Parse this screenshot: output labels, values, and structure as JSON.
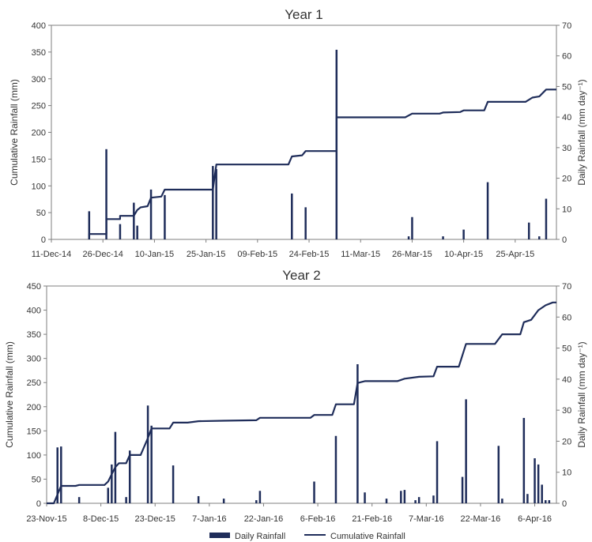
{
  "chart_data": [
    {
      "type": "bar+line",
      "title": "Year 1",
      "ylabel_left": "Cumulative Rainfall (mm)",
      "ylabel_right": "Daily Rainfall (mm day⁻¹)",
      "ylim_left": [
        0,
        400
      ],
      "yticks_left": [
        0,
        50,
        100,
        150,
        200,
        250,
        300,
        350,
        400
      ],
      "ylim_right": [
        0,
        70
      ],
      "yticks_right": [
        0,
        10,
        20,
        30,
        40,
        50,
        60,
        70
      ],
      "x_range": [
        "2014-12-11",
        "2015-05-07"
      ],
      "x_ticks": [
        "11-Dec-14",
        "26-Dec-14",
        "10-Jan-15",
        "25-Jan-15",
        "09-Feb-15",
        "24-Feb-15",
        "11-Mar-15",
        "26-Mar-15",
        "10-Apr-15",
        "25-Apr-15"
      ],
      "grid": false,
      "series": [
        {
          "name": "Daily Rainfall",
          "kind": "bar",
          "color": "#1f2d5a",
          "points": [
            [
              "2014-12-22",
              9.2
            ],
            [
              "2014-12-27",
              29.5
            ],
            [
              "2014-12-31",
              5.0
            ],
            [
              "2015-01-04",
              12.0
            ],
            [
              "2015-01-05",
              4.5
            ],
            [
              "2015-01-09",
              16.3
            ],
            [
              "2015-01-13",
              14.5
            ],
            [
              "2015-01-27",
              24.0
            ],
            [
              "2015-01-28",
              23.0
            ],
            [
              "2015-02-19",
              15.0
            ],
            [
              "2015-02-23",
              10.5
            ],
            [
              "2015-03-04",
              62.0
            ],
            [
              "2015-03-25",
              1.0
            ],
            [
              "2015-03-26",
              7.3
            ],
            [
              "2015-04-04",
              1.0
            ],
            [
              "2015-04-10",
              3.2
            ],
            [
              "2015-04-17",
              18.7
            ],
            [
              "2015-04-29",
              5.5
            ],
            [
              "2015-05-02",
              1.0
            ],
            [
              "2015-05-04",
              13.3
            ]
          ]
        },
        {
          "name": "Cumulative Rainfall",
          "kind": "line",
          "color": "#1f2d5a",
          "points": [
            [
              "2014-12-22",
              0
            ],
            [
              "2014-12-22",
              10
            ],
            [
              "2014-12-27",
              10
            ],
            [
              "2014-12-27",
              38
            ],
            [
              "2014-12-31",
              38
            ],
            [
              "2014-12-31",
              44
            ],
            [
              "2015-01-04",
              44
            ],
            [
              "2015-01-05",
              55
            ],
            [
              "2015-01-06",
              60
            ],
            [
              "2015-01-08",
              62
            ],
            [
              "2015-01-09",
              78
            ],
            [
              "2015-01-12",
              80
            ],
            [
              "2015-01-13",
              93
            ],
            [
              "2015-01-27",
              93
            ],
            [
              "2015-01-28",
              140
            ],
            [
              "2015-02-18",
              140
            ],
            [
              "2015-02-19",
              155
            ],
            [
              "2015-02-22",
              157
            ],
            [
              "2015-02-23",
              165
            ],
            [
              "2015-03-04",
              165
            ],
            [
              "2015-03-04",
              228
            ],
            [
              "2015-03-24",
              228
            ],
            [
              "2015-03-26",
              235
            ],
            [
              "2015-04-03",
              235
            ],
            [
              "2015-04-04",
              237
            ],
            [
              "2015-04-09",
              238
            ],
            [
              "2015-04-10",
              241
            ],
            [
              "2015-04-16",
              241
            ],
            [
              "2015-04-17",
              257
            ],
            [
              "2015-04-28",
              257
            ],
            [
              "2015-04-30",
              265
            ],
            [
              "2015-05-02",
              267
            ],
            [
              "2015-05-04",
              280
            ],
            [
              "2015-05-07",
              280
            ]
          ]
        }
      ]
    },
    {
      "type": "bar+line",
      "title": "Year 2",
      "ylabel_left": "Cumulative Rainfall (mm)",
      "ylabel_right": "Daily Rainfall (mm day⁻¹)",
      "ylim_left": [
        0,
        450
      ],
      "yticks_left": [
        0,
        50,
        100,
        150,
        200,
        250,
        300,
        350,
        400,
        450
      ],
      "ylim_right": [
        0,
        70
      ],
      "yticks_right": [
        0,
        10,
        20,
        30,
        40,
        50,
        60,
        70
      ],
      "x_range": [
        "2015-11-23",
        "2016-04-12"
      ],
      "x_ticks": [
        "23-Nov-15",
        "8-Dec-15",
        "23-Dec-15",
        "7-Jan-16",
        "22-Jan-16",
        "6-Feb-16",
        "21-Feb-16",
        "7-Mar-16",
        "22-Mar-16",
        "6-Apr-16"
      ],
      "grid": false,
      "series": [
        {
          "name": "Daily Rainfall",
          "kind": "bar",
          "color": "#1f2d5a",
          "points": [
            [
              "2015-11-26",
              18.0
            ],
            [
              "2015-11-27",
              18.3
            ],
            [
              "2015-12-02",
              2.0
            ],
            [
              "2015-12-10",
              5.0
            ],
            [
              "2015-12-11",
              12.5
            ],
            [
              "2015-12-12",
              23.0
            ],
            [
              "2015-12-15",
              2.0
            ],
            [
              "2015-12-16",
              17.0
            ],
            [
              "2015-12-21",
              31.5
            ],
            [
              "2015-12-22",
              25.0
            ],
            [
              "2015-12-28",
              12.2
            ],
            [
              "2016-01-04",
              2.3
            ],
            [
              "2016-01-11",
              1.5
            ],
            [
              "2016-01-20",
              1.0
            ],
            [
              "2016-01-21",
              4.0
            ],
            [
              "2016-02-05",
              7.0
            ],
            [
              "2016-02-11",
              21.7
            ],
            [
              "2016-02-17",
              44.8
            ],
            [
              "2016-02-19",
              3.5
            ],
            [
              "2016-02-25",
              1.5
            ],
            [
              "2016-02-29",
              4.0
            ],
            [
              "2016-03-01",
              4.3
            ],
            [
              "2016-03-04",
              1.0
            ],
            [
              "2016-03-05",
              2.0
            ],
            [
              "2016-03-09",
              2.5
            ],
            [
              "2016-03-10",
              20.0
            ],
            [
              "2016-03-17",
              8.5
            ],
            [
              "2016-03-18",
              33.5
            ],
            [
              "2016-03-27",
              18.5
            ],
            [
              "2016-03-28",
              1.5
            ],
            [
              "2016-04-03",
              27.5
            ],
            [
              "2016-04-04",
              3.0
            ],
            [
              "2016-04-06",
              14.5
            ],
            [
              "2016-04-07",
              12.5
            ],
            [
              "2016-04-08",
              6.0
            ],
            [
              "2016-04-09",
              1.0
            ],
            [
              "2016-04-10",
              1.0
            ]
          ]
        },
        {
          "name": "Cumulative Rainfall",
          "kind": "line",
          "color": "#1f2d5a",
          "points": [
            [
              "2015-11-23",
              0
            ],
            [
              "2015-11-25",
              0
            ],
            [
              "2015-11-27",
              36
            ],
            [
              "2015-12-01",
              36
            ],
            [
              "2015-12-02",
              38
            ],
            [
              "2015-12-09",
              38
            ],
            [
              "2015-12-10",
              45
            ],
            [
              "2015-12-11",
              60
            ],
            [
              "2015-12-12",
              75
            ],
            [
              "2015-12-13",
              83
            ],
            [
              "2015-12-15",
              83
            ],
            [
              "2015-12-16",
              100
            ],
            [
              "2015-12-19",
              100
            ],
            [
              "2015-12-21",
              135
            ],
            [
              "2015-12-22",
              155
            ],
            [
              "2015-12-27",
              155
            ],
            [
              "2015-12-28",
              167
            ],
            [
              "2016-01-01",
              167
            ],
            [
              "2016-01-04",
              170
            ],
            [
              "2016-01-11",
              171
            ],
            [
              "2016-01-20",
              172
            ],
            [
              "2016-01-21",
              177
            ],
            [
              "2016-02-04",
              177
            ],
            [
              "2016-02-05",
              183
            ],
            [
              "2016-02-10",
              183
            ],
            [
              "2016-02-11",
              205
            ],
            [
              "2016-02-16",
              205
            ],
            [
              "2016-02-17",
              249
            ],
            [
              "2016-02-18",
              251
            ],
            [
              "2016-02-19",
              253
            ],
            [
              "2016-02-28",
              253
            ],
            [
              "2016-03-01",
              258
            ],
            [
              "2016-03-05",
              262
            ],
            [
              "2016-03-09",
              263
            ],
            [
              "2016-03-10",
              283
            ],
            [
              "2016-03-16",
              283
            ],
            [
              "2016-03-18",
              330
            ],
            [
              "2016-03-26",
              330
            ],
            [
              "2016-03-28",
              350
            ],
            [
              "2016-04-02",
              350
            ],
            [
              "2016-04-03",
              375
            ],
            [
              "2016-04-05",
              380
            ],
            [
              "2016-04-07",
              400
            ],
            [
              "2016-04-09",
              410
            ],
            [
              "2016-04-11",
              416
            ],
            [
              "2016-04-12",
              416
            ]
          ]
        }
      ]
    }
  ],
  "legend": {
    "placement": "bottom-center",
    "items": [
      {
        "label": "Daily Rainfall",
        "kind": "bar",
        "color": "#1f2d5a"
      },
      {
        "label": "Cumulative Rainfall",
        "kind": "line",
        "color": "#1f2d5a"
      }
    ]
  }
}
